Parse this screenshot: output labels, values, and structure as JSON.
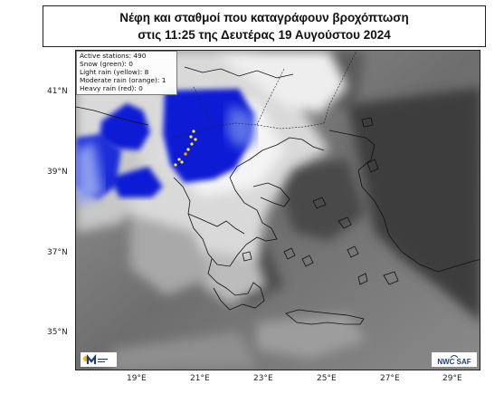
{
  "title": {
    "line1": "Νέφη και σταθμοί που καταγράφουν βροχόπτωση",
    "line2": "στις 11:25 της Δευτέρας 19 Αυγούστου 2024"
  },
  "legend": {
    "active": "Active stations: 490",
    "snow": "Snow (green): 0",
    "light": "Light rain (yellow): 8",
    "moderate": "Moderate rain (orange): 1",
    "heavy": "Heavy rain (red): 0"
  },
  "stations": {
    "light_rain_count": 8,
    "moderate_rain_count": 1,
    "light_rain_color": "#f5e642",
    "moderate_rain_color": "#f39c12"
  },
  "axes": {
    "latitudes": [
      "41°N",
      "39°N",
      "37°N",
      "35°N"
    ],
    "longitudes": [
      "19°E",
      "21°E",
      "23°E",
      "25°E",
      "27°E",
      "29°E"
    ]
  },
  "logos": {
    "left_icon": "meteo-logo-icon",
    "right": "NWC SAF",
    "right_icon": "nwcsaf-logo-icon"
  },
  "colors": {
    "rain_cloud": "#0a1fd0",
    "cloud_white": "#f2f2f2",
    "land_dark": "#3a3a3a"
  }
}
